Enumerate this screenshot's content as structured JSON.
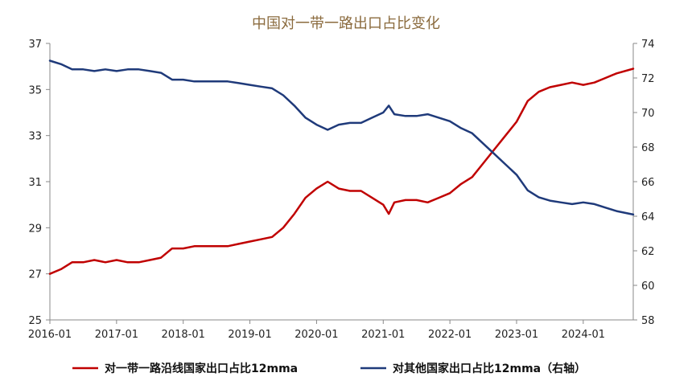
{
  "chart_data": {
    "type": "line",
    "title": "中国对一带一路出口占比变化",
    "title_color": "#8b6b3e",
    "x_tick_labels": [
      "2016-01",
      "2017-01",
      "2018-01",
      "2019-01",
      "2020-01",
      "2021-01",
      "2022-01",
      "2023-01",
      "2024-01"
    ],
    "x_range": [
      "2016-01",
      "2024-10"
    ],
    "left_axis": {
      "ylim": [
        25,
        37
      ],
      "ticks": [
        25,
        27,
        29,
        31,
        33,
        35,
        37
      ]
    },
    "right_axis": {
      "ylim": [
        58,
        74
      ],
      "ticks": [
        58,
        60,
        62,
        64,
        66,
        68,
        70,
        72,
        74
      ]
    },
    "grid": false,
    "legend_position": "bottom",
    "series": [
      {
        "name": "对一带一路沿线国家出口占比12mma",
        "axis": "left",
        "color": "#c00000",
        "points": [
          [
            "2016-01",
            27.0
          ],
          [
            "2016-03",
            27.2
          ],
          [
            "2016-05",
            27.5
          ],
          [
            "2016-07",
            27.5
          ],
          [
            "2016-09",
            27.6
          ],
          [
            "2016-11",
            27.5
          ],
          [
            "2017-01",
            27.6
          ],
          [
            "2017-03",
            27.5
          ],
          [
            "2017-05",
            27.5
          ],
          [
            "2017-07",
            27.6
          ],
          [
            "2017-09",
            27.7
          ],
          [
            "2017-11",
            28.1
          ],
          [
            "2018-01",
            28.1
          ],
          [
            "2018-03",
            28.2
          ],
          [
            "2018-05",
            28.2
          ],
          [
            "2018-07",
            28.2
          ],
          [
            "2018-09",
            28.2
          ],
          [
            "2018-11",
            28.3
          ],
          [
            "2019-01",
            28.4
          ],
          [
            "2019-03",
            28.5
          ],
          [
            "2019-05",
            28.6
          ],
          [
            "2019-07",
            29.0
          ],
          [
            "2019-09",
            29.6
          ],
          [
            "2019-11",
            30.3
          ],
          [
            "2020-01",
            30.7
          ],
          [
            "2020-03",
            31.0
          ],
          [
            "2020-05",
            30.7
          ],
          [
            "2020-07",
            30.6
          ],
          [
            "2020-09",
            30.6
          ],
          [
            "2020-11",
            30.3
          ],
          [
            "2021-01",
            30.0
          ],
          [
            "2021-02",
            29.6
          ],
          [
            "2021-03",
            30.1
          ],
          [
            "2021-05",
            30.2
          ],
          [
            "2021-07",
            30.2
          ],
          [
            "2021-09",
            30.1
          ],
          [
            "2021-11",
            30.3
          ],
          [
            "2022-01",
            30.5
          ],
          [
            "2022-03",
            30.9
          ],
          [
            "2022-05",
            31.2
          ],
          [
            "2022-07",
            31.8
          ],
          [
            "2022-09",
            32.4
          ],
          [
            "2022-11",
            33.0
          ],
          [
            "2023-01",
            33.6
          ],
          [
            "2023-03",
            34.5
          ],
          [
            "2023-05",
            34.9
          ],
          [
            "2023-07",
            35.1
          ],
          [
            "2023-09",
            35.2
          ],
          [
            "2023-11",
            35.3
          ],
          [
            "2024-01",
            35.2
          ],
          [
            "2024-03",
            35.3
          ],
          [
            "2024-05",
            35.5
          ],
          [
            "2024-07",
            35.7
          ],
          [
            "2024-10",
            35.9
          ]
        ]
      },
      {
        "name": "对其他国家出口占比12mma（右轴）",
        "axis": "right",
        "color": "#1f3a7a",
        "points": [
          [
            "2016-01",
            73.0
          ],
          [
            "2016-03",
            72.8
          ],
          [
            "2016-05",
            72.5
          ],
          [
            "2016-07",
            72.5
          ],
          [
            "2016-09",
            72.4
          ],
          [
            "2016-11",
            72.5
          ],
          [
            "2017-01",
            72.4
          ],
          [
            "2017-03",
            72.5
          ],
          [
            "2017-05",
            72.5
          ],
          [
            "2017-07",
            72.4
          ],
          [
            "2017-09",
            72.3
          ],
          [
            "2017-11",
            71.9
          ],
          [
            "2018-01",
            71.9
          ],
          [
            "2018-03",
            71.8
          ],
          [
            "2018-05",
            71.8
          ],
          [
            "2018-07",
            71.8
          ],
          [
            "2018-09",
            71.8
          ],
          [
            "2018-11",
            71.7
          ],
          [
            "2019-01",
            71.6
          ],
          [
            "2019-03",
            71.5
          ],
          [
            "2019-05",
            71.4
          ],
          [
            "2019-07",
            71.0
          ],
          [
            "2019-09",
            70.4
          ],
          [
            "2019-11",
            69.7
          ],
          [
            "2020-01",
            69.3
          ],
          [
            "2020-03",
            69.0
          ],
          [
            "2020-05",
            69.3
          ],
          [
            "2020-07",
            69.4
          ],
          [
            "2020-09",
            69.4
          ],
          [
            "2020-11",
            69.7
          ],
          [
            "2021-01",
            70.0
          ],
          [
            "2021-02",
            70.4
          ],
          [
            "2021-03",
            69.9
          ],
          [
            "2021-05",
            69.8
          ],
          [
            "2021-07",
            69.8
          ],
          [
            "2021-09",
            69.9
          ],
          [
            "2021-11",
            69.7
          ],
          [
            "2022-01",
            69.5
          ],
          [
            "2022-03",
            69.1
          ],
          [
            "2022-05",
            68.8
          ],
          [
            "2022-07",
            68.2
          ],
          [
            "2022-09",
            67.6
          ],
          [
            "2022-11",
            67.0
          ],
          [
            "2023-01",
            66.4
          ],
          [
            "2023-03",
            65.5
          ],
          [
            "2023-05",
            65.1
          ],
          [
            "2023-07",
            64.9
          ],
          [
            "2023-09",
            64.8
          ],
          [
            "2023-11",
            64.7
          ],
          [
            "2024-01",
            64.8
          ],
          [
            "2024-03",
            64.7
          ],
          [
            "2024-05",
            64.5
          ],
          [
            "2024-07",
            64.3
          ],
          [
            "2024-10",
            64.1
          ]
        ]
      }
    ]
  }
}
